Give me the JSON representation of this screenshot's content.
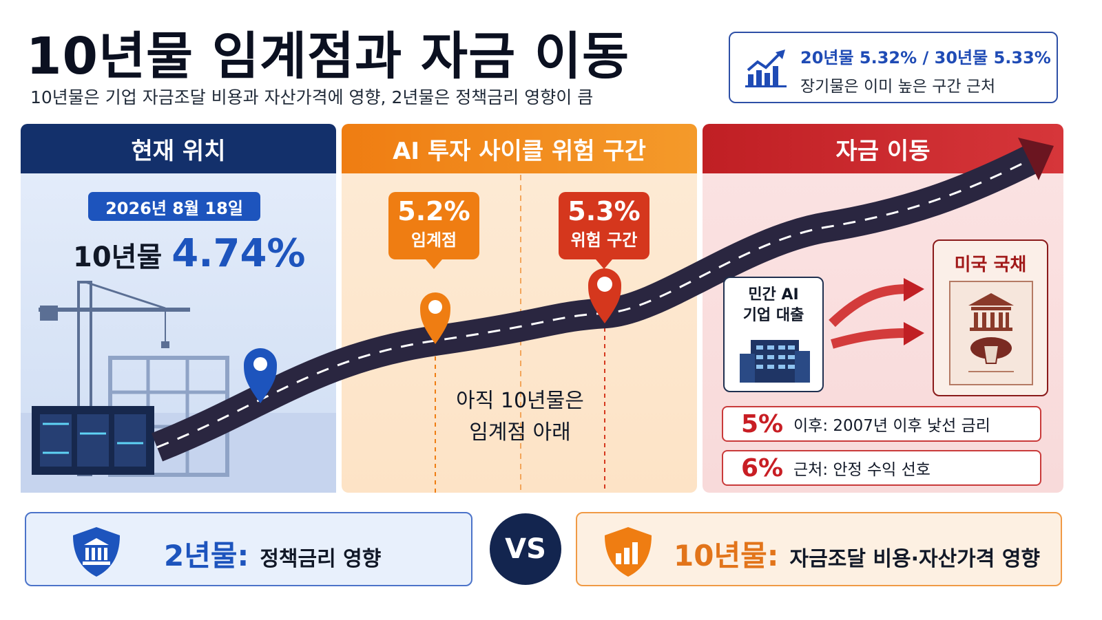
{
  "title": "10년물 임계점과 자금 이동",
  "subtitle": "10년물은 기업 자금조달 비용과 자산가격에 영향, 2년물은 정책금리 영향이 큼",
  "top_box": {
    "line1": "20년물 5.32% / 30년물 5.33%",
    "line2": "장기물은 이미 높은 구간 근처",
    "icon": "rising-bar-chart-icon"
  },
  "panels": {
    "current": {
      "header": "현재 위치",
      "date": "2026년 8월 18일",
      "label": "10년물",
      "value": "4.74%",
      "color": "#13306b"
    },
    "risk": {
      "header": "AI 투자 사이클 위험 구간",
      "threshold": {
        "value": "5.2%",
        "label": "임계점",
        "color": "#ef7d12"
      },
      "danger": {
        "value": "5.3%",
        "label": "위험 구간",
        "color": "#d5371d"
      },
      "note_line1": "아직 10년물은",
      "note_line2": "임계점 아래"
    },
    "flow": {
      "header": "자금 이동",
      "private_line1": "민간 AI",
      "private_line2": "기업 대출",
      "bond_label": "미국 국채",
      "rows": [
        {
          "big": "5%",
          "text": "이후: 2007년 이후 낯선 금리"
        },
        {
          "big": "6%",
          "text": "근처: 안정 수익 선호"
        }
      ],
      "color": "#c01f24"
    }
  },
  "bottom": {
    "left": {
      "strong": "2년물:",
      "rest": "정책금리 영향",
      "icon": "bank-shield-icon"
    },
    "vs": "VS",
    "right": {
      "strong": "10년물:",
      "rest": "자금조달 비용·자산가격 영향",
      "icon": "chart-shield-icon"
    }
  }
}
